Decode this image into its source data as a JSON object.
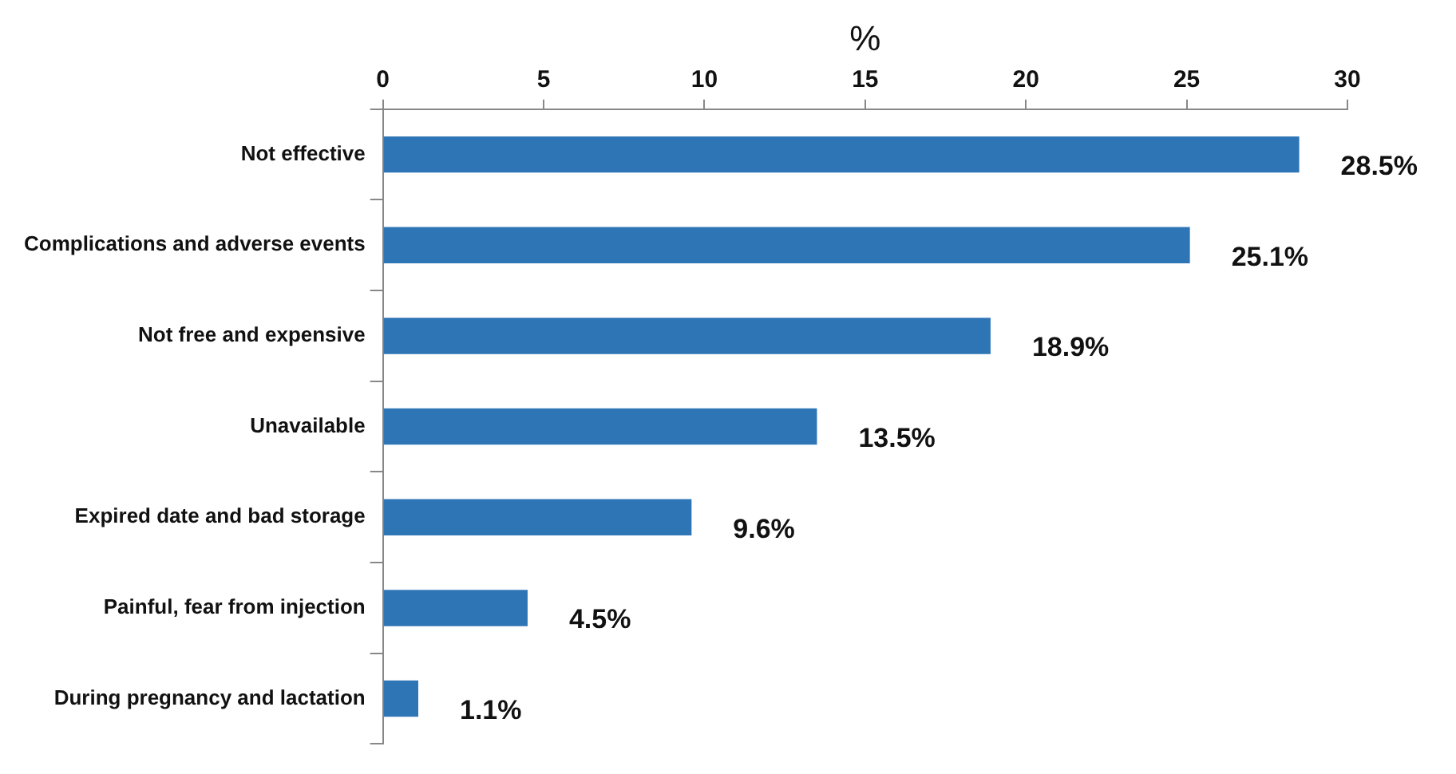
{
  "chart_data": {
    "type": "bar",
    "orientation": "horizontal",
    "xlabel": "%",
    "categories": [
      "Not effective",
      "Complications and adverse events",
      "Not free and expensive",
      "Unavailable",
      "Expired date and bad storage",
      "Painful, fear from injection",
      "During pregnancy and lactation"
    ],
    "values": [
      28.5,
      25.1,
      18.9,
      13.5,
      9.6,
      4.5,
      1.1
    ],
    "value_labels": [
      "28.5%",
      "25.1%",
      "18.9%",
      "13.5%",
      "9.6%",
      "4.5%",
      "1.1%"
    ],
    "color": "#2e75b6",
    "xlim": [
      0,
      30
    ],
    "xticks": [
      0,
      5,
      10,
      15,
      20,
      25,
      30
    ],
    "grid": false,
    "legend": false
  }
}
